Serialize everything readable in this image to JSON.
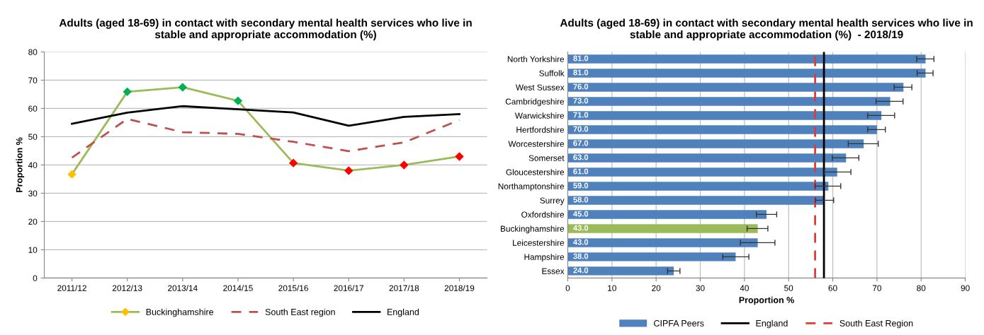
{
  "chart_data": [
    {
      "type": "line",
      "title": "Adults (aged 18-69) in contact with secondary mental health services who live in\nstable and appropriate accommodation (%)",
      "ylabel": "Proportion %",
      "categories": [
        "2011/12",
        "2012/13",
        "2013/14",
        "2014/15",
        "2015/16",
        "2016/17",
        "2017/18",
        "2018/19"
      ],
      "ylim": [
        0,
        80
      ],
      "yticks": [
        0,
        10,
        20,
        30,
        40,
        50,
        60,
        70,
        80
      ],
      "grid": "y",
      "legend": "bottom",
      "series": [
        {
          "name": "Buckinghamshire",
          "color": "#9bbb59",
          "marker": "diamond",
          "line_style": "solid",
          "colors": [
            "#ffc000",
            "#00b050",
            "#00b050",
            "#00b050",
            "#ff0000",
            "#ff0000",
            "#ff0000",
            "#ff0000"
          ],
          "values": [
            36.7,
            65.9,
            67.5,
            62.7,
            40.7,
            38.0,
            40.0,
            43.0
          ]
        },
        {
          "name": "South East region",
          "color": "#c0504d",
          "marker": "none",
          "line_style": "dashed",
          "values": [
            42.6,
            56.3,
            51.6,
            51.0,
            48.2,
            44.9,
            48.0,
            55.9
          ]
        },
        {
          "name": "England",
          "color": "#000000",
          "marker": "none",
          "line_style": "solid",
          "values": [
            54.6,
            58.5,
            60.8,
            59.7,
            58.6,
            53.9,
            57.0,
            58.0
          ]
        }
      ]
    },
    {
      "type": "bar",
      "orientation": "horizontal",
      "title": "Adults (aged 18-69) in contact with secondary mental health services who live in\nstable and appropriate accommodation (%)  - 2018/19",
      "xlabel": "Proportion %",
      "categories": [
        "North Yorkshire",
        "Suffolk",
        "West Sussex",
        "Cambridgeshire",
        "Warwickshire",
        "Hertfordshire",
        "Worcestershire",
        "Somerset",
        "Gloucestershire",
        "Northamptonshire",
        "Surrey",
        "Oxfordshire",
        "Buckinghamshire",
        "Leicestershire",
        "Hampshire",
        "Essex"
      ],
      "xlim": [
        0,
        90
      ],
      "xticks": [
        0,
        10,
        20,
        30,
        40,
        50,
        60,
        70,
        80,
        90
      ],
      "grid": "x",
      "legend": "bottom",
      "series": [
        {
          "name": "CIPFA Peers",
          "color": "#4f81bd",
          "colors": [
            "#4f81bd",
            "#4f81bd",
            "#4f81bd",
            "#4f81bd",
            "#4f81bd",
            "#4f81bd",
            "#4f81bd",
            "#4f81bd",
            "#4f81bd",
            "#4f81bd",
            "#4f81bd",
            "#4f81bd",
            "#9bbb59",
            "#4f81bd",
            "#4f81bd",
            "#4f81bd"
          ],
          "values": [
            81.0,
            81.0,
            76.0,
            73.0,
            71.0,
            70.0,
            67.0,
            63.0,
            61.0,
            59.0,
            58.0,
            45.0,
            43.0,
            43.0,
            38.0,
            24.0
          ],
          "value_labels": [
            "81.0",
            "81.0",
            "76.0",
            "73.0",
            "71.0",
            "70.0",
            "67.0",
            "63.0",
            "61.0",
            "59.0",
            "58.0",
            "45.0",
            "43.0",
            "43.0",
            "38.0",
            "24.0"
          ],
          "errors": [
            [
              79.0,
              82.9
            ],
            [
              79.1,
              82.7
            ],
            [
              73.9,
              77.9
            ],
            [
              69.8,
              75.9
            ],
            [
              67.9,
              74.0
            ],
            [
              67.9,
              71.9
            ],
            [
              63.5,
              70.3
            ],
            [
              59.9,
              65.9
            ],
            [
              58.1,
              64.1
            ],
            [
              56.0,
              61.8
            ],
            [
              56.1,
              60.2
            ],
            [
              42.7,
              47.3
            ],
            [
              40.6,
              45.3
            ],
            [
              39.1,
              46.9
            ],
            [
              35.1,
              41.0
            ],
            [
              22.6,
              25.4
            ]
          ]
        }
      ],
      "ref_lines": [
        {
          "axis": "x",
          "value": 58,
          "label": "England",
          "color": "#000000",
          "line_style": "solid"
        },
        {
          "axis": "x",
          "value": 56,
          "label": "South East Region",
          "color": "#dc3c3c",
          "line_style": "dashed"
        }
      ]
    }
  ]
}
